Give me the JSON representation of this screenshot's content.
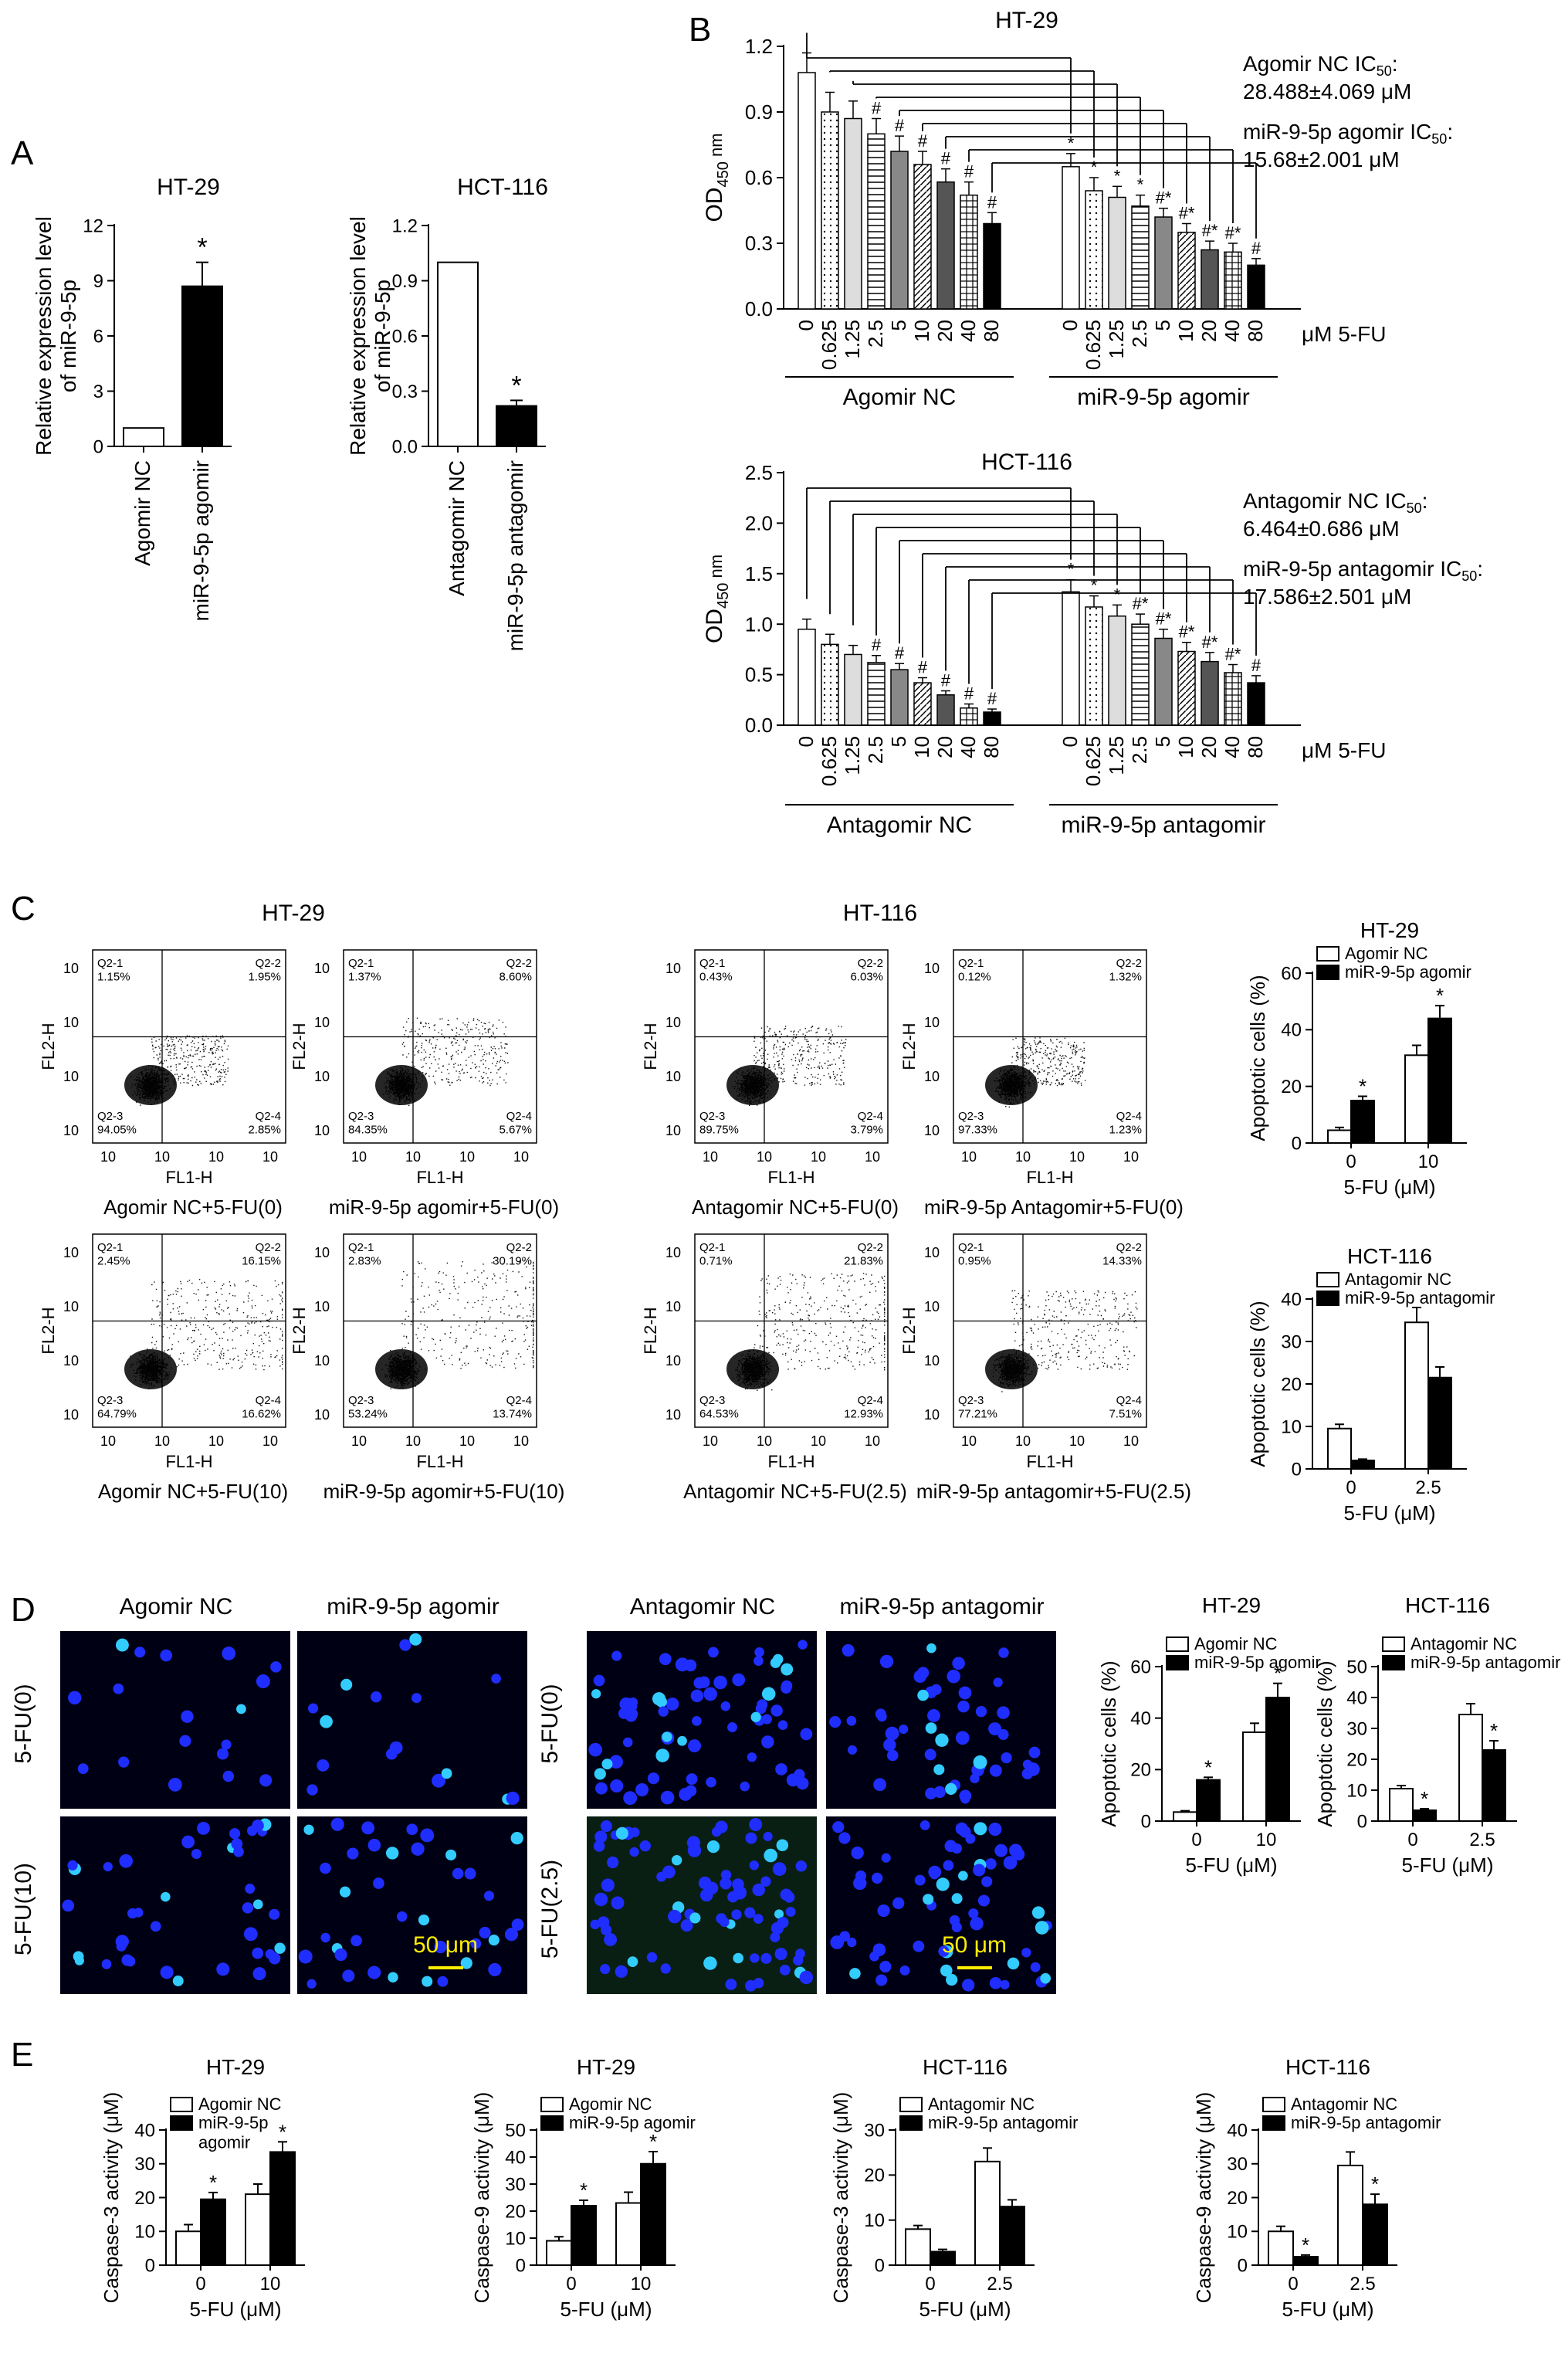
{
  "panel_labels": [
    "A",
    "B",
    "C",
    "D",
    "E"
  ],
  "chart_data": [
    {
      "id": "A_ht29",
      "type": "bar",
      "title": "HT-29",
      "ylabel": "Relative expression level of miR-9-5p",
      "categories": [
        "Agomir NC",
        "miR-9-5p agomir"
      ],
      "values": [
        1.0,
        8.7
      ],
      "errors": [
        0,
        1.3
      ],
      "sig": [
        "",
        "*"
      ],
      "ylim": [
        0,
        12
      ],
      "yticks": [
        0,
        3,
        6,
        9,
        12
      ],
      "colors": [
        "#ffffff",
        "#000000"
      ]
    },
    {
      "id": "A_hct116",
      "type": "bar",
      "title": "HCT-116",
      "ylabel": "Relative expression level of miR-9-5p",
      "categories": [
        "Antagomir NC",
        "miR-9-5p antagomir"
      ],
      "values": [
        1.0,
        0.22
      ],
      "errors": [
        0,
        0.03
      ],
      "sig": [
        "",
        "*"
      ],
      "ylim": [
        0,
        1.2
      ],
      "yticks": [
        "0.0",
        "0.3",
        "0.6",
        "0.9",
        "1.2"
      ],
      "colors": [
        "#ffffff",
        "#000000"
      ]
    },
    {
      "id": "B_ht29",
      "type": "bar",
      "title": "HT-29",
      "ylabel": "OD450 nm",
      "xunit": "μM 5-FU",
      "ylim": [
        0,
        1.2
      ],
      "yticks": [
        "0.0",
        "0.3",
        "0.6",
        "0.9",
        "1.2"
      ],
      "categories": [
        "0",
        "0.625",
        "1.25",
        "2.5",
        "5",
        "10",
        "20",
        "40",
        "80"
      ],
      "groups": [
        "Agomir  NC",
        "miR-9-5p agomir"
      ],
      "series": [
        {
          "name": "Agomir  NC",
          "values": [
            1.08,
            0.9,
            0.87,
            0.8,
            0.72,
            0.66,
            0.58,
            0.52,
            0.39
          ],
          "errors": [
            0.09,
            0.09,
            0.08,
            0.07,
            0.07,
            0.06,
            0.06,
            0.06,
            0.05
          ],
          "sig": [
            "",
            "",
            "",
            "#",
            "#",
            "#",
            "#",
            "#",
            "#"
          ]
        },
        {
          "name": "miR-9-5p agomir",
          "values": [
            0.65,
            0.54,
            0.51,
            0.47,
            0.42,
            0.35,
            0.27,
            0.26,
            0.2
          ],
          "errors": [
            0.06,
            0.06,
            0.05,
            0.05,
            0.04,
            0.04,
            0.04,
            0.04,
            0.03
          ],
          "sig": [
            "*",
            "*",
            "*",
            "*",
            "#*",
            "#*",
            "#*",
            "#*",
            "#"
          ]
        }
      ],
      "ic50": [
        "Agomir NC IC50:",
        "28.488±4.069 μM",
        "miR-9-5p agomir IC50:",
        "15.68±2.001 μM"
      ]
    },
    {
      "id": "B_hct116",
      "type": "bar",
      "title": "HCT-116",
      "ylabel": "OD450 nm",
      "xunit": "μM 5-FU",
      "ylim": [
        0,
        2.5
      ],
      "yticks": [
        "0.0",
        "0.5",
        "1.0",
        "1.5",
        "2.0",
        "2.5"
      ],
      "categories": [
        "0",
        "0.625",
        "1.25",
        "2.5",
        "5",
        "10",
        "20",
        "40",
        "80"
      ],
      "groups": [
        "Antagomir NC",
        "miR-9-5p antagomir"
      ],
      "series": [
        {
          "name": "Antagomir NC",
          "values": [
            0.95,
            0.8,
            0.7,
            0.62,
            0.55,
            0.42,
            0.3,
            0.17,
            0.13
          ],
          "errors": [
            0.1,
            0.1,
            0.09,
            0.07,
            0.06,
            0.05,
            0.04,
            0.04,
            0.03
          ],
          "sig": [
            "",
            "",
            "",
            "#",
            "#",
            "#",
            "#",
            "#",
            "#"
          ]
        },
        {
          "name": "miR-9-5p antagomir",
          "values": [
            1.32,
            1.17,
            1.08,
            1.0,
            0.86,
            0.73,
            0.63,
            0.52,
            0.42
          ],
          "errors": [
            0.12,
            0.11,
            0.11,
            0.1,
            0.09,
            0.09,
            0.09,
            0.08,
            0.07
          ],
          "sig": [
            "*",
            "*",
            "*",
            "#*",
            "#*",
            "#*",
            "#*",
            "#*",
            "#"
          ]
        }
      ],
      "ic50": [
        "Antagomir NC IC50:",
        "6.464±0.686 μM",
        "miR-9-5p antagomir IC50:",
        "17.586±2.501 μM"
      ]
    },
    {
      "id": "C_ht29_bar",
      "type": "bar",
      "title": "HT-29",
      "ylabel": "Apoptotic cells (%)",
      "xlabel": "5-FU (μM)",
      "ylim": [
        0,
        60
      ],
      "yticks": [
        "0",
        "20",
        "40",
        "60"
      ],
      "categories": [
        "0",
        "10"
      ],
      "series": [
        {
          "name": "Agomir NC",
          "values": [
            4.5,
            31
          ],
          "errors": [
            1,
            3.5
          ],
          "sig": [
            "",
            ""
          ]
        },
        {
          "name": "miR-9-5p agomir",
          "values": [
            15,
            44
          ],
          "errors": [
            1.5,
            4.5
          ],
          "sig": [
            "*",
            "*"
          ]
        }
      ]
    },
    {
      "id": "C_hct116_bar",
      "type": "bar",
      "title": "HCT-116",
      "ylabel": "Apoptotic cells (%)",
      "xlabel": "5-FU (μM)",
      "ylim": [
        0,
        40
      ],
      "yticks": [
        "0",
        "10",
        "20",
        "30",
        "40"
      ],
      "categories": [
        "0",
        "2.5"
      ],
      "series": [
        {
          "name": "Antagomir NC",
          "values": [
            9.5,
            34.5
          ],
          "errors": [
            1.0,
            3.5
          ],
          "sig": [
            "",
            ""
          ]
        },
        {
          "name": "miR-9-5p antagomir",
          "values": [
            2,
            21.5
          ],
          "errors": [
            0.3,
            2.5
          ],
          "sig": [
            "",
            ""
          ]
        }
      ]
    },
    {
      "id": "D_ht29_bar",
      "type": "bar",
      "title": "HT-29",
      "ylabel": "Apoptotic cells (%)",
      "xlabel": "5-FU (μM)",
      "ylim": [
        0,
        60
      ],
      "yticks": [
        "0",
        "20",
        "40",
        "60"
      ],
      "categories": [
        "0",
        "10"
      ],
      "series": [
        {
          "name": "Agomir NC",
          "values": [
            3.5,
            34.5
          ],
          "errors": [
            0.5,
            3.5
          ],
          "sig": [
            "",
            ""
          ]
        },
        {
          "name": "miR-9-5p agomir",
          "values": [
            16,
            48
          ],
          "errors": [
            1.0,
            5.5
          ],
          "sig": [
            "*",
            "*"
          ]
        }
      ]
    },
    {
      "id": "D_hct116_bar",
      "type": "bar",
      "title": "HCT-116",
      "ylabel": "Apoptotic cells (%)",
      "xlabel": "5-FU (μM)",
      "ylim": [
        0,
        50
      ],
      "yticks": [
        "0",
        "10",
        "20",
        "30",
        "40",
        "50"
      ],
      "categories": [
        "0",
        "2.5"
      ],
      "series": [
        {
          "name": "Antagomir NC",
          "values": [
            10.5,
            34.5
          ],
          "errors": [
            1.0,
            3.5
          ],
          "sig": [
            "",
            ""
          ]
        },
        {
          "name": "miR-9-5p antagomir",
          "values": [
            3.5,
            23
          ],
          "errors": [
            0.5,
            3.0
          ],
          "sig": [
            "*",
            "*"
          ]
        }
      ]
    },
    {
      "id": "E_ht29_c3",
      "type": "bar",
      "title": "HT-29",
      "ylabel": "Caspase-3 activity (μM)",
      "xlabel": "5-FU (μM)",
      "ylim": [
        0,
        40
      ],
      "yticks": [
        "0",
        "10",
        "20",
        "30",
        "40"
      ],
      "categories": [
        "0",
        "10"
      ],
      "series": [
        {
          "name": "Agomir NC",
          "values": [
            10,
            21
          ],
          "errors": [
            2,
            3
          ],
          "sig": [
            "",
            ""
          ]
        },
        {
          "name": "miR-9-5p\nagomir",
          "values": [
            19.5,
            33.5
          ],
          "errors": [
            2,
            3
          ],
          "sig": [
            "*",
            "*"
          ]
        }
      ]
    },
    {
      "id": "E_ht29_c9",
      "type": "bar",
      "title": "HT-29",
      "ylabel": "Caspase-9 activity (μM)",
      "xlabel": "5-FU (μM)",
      "ylim": [
        0,
        50
      ],
      "yticks": [
        "0",
        "10",
        "20",
        "30",
        "40",
        "50"
      ],
      "categories": [
        "0",
        "10"
      ],
      "series": [
        {
          "name": "Agomir NC",
          "values": [
            9,
            23
          ],
          "errors": [
            1.5,
            4
          ],
          "sig": [
            "",
            ""
          ]
        },
        {
          "name": "miR-9-5p agomir",
          "values": [
            22,
            37.5
          ],
          "errors": [
            2,
            4.5
          ],
          "sig": [
            "*",
            "*"
          ]
        }
      ]
    },
    {
      "id": "E_hct116_c3",
      "type": "bar",
      "title": "HCT-116",
      "ylabel": "Caspase-3 activity (μM)",
      "xlabel": "5-FU (μM)",
      "ylim": [
        0,
        30
      ],
      "yticks": [
        "0",
        "10",
        "20",
        "30"
      ],
      "categories": [
        "0",
        "2.5"
      ],
      "series": [
        {
          "name": "Antagomir NC",
          "values": [
            8,
            23
          ],
          "errors": [
            0.8,
            3
          ],
          "sig": [
            "",
            ""
          ]
        },
        {
          "name": "miR-9-5p antagomir",
          "values": [
            3,
            13
          ],
          "errors": [
            0.5,
            1.5
          ],
          "sig": [
            "",
            ""
          ]
        }
      ]
    },
    {
      "id": "E_hct116_c9",
      "type": "bar",
      "title": "HCT-116",
      "ylabel": "Caspase-9 activity (μM)",
      "xlabel": "5-FU (μM)",
      "ylim": [
        0,
        40
      ],
      "yticks": [
        "0",
        "10",
        "20",
        "30",
        "40"
      ],
      "categories": [
        "0",
        "2.5"
      ],
      "series": [
        {
          "name": "Antagomir NC",
          "values": [
            10,
            29.5
          ],
          "errors": [
            1.5,
            4
          ],
          "sig": [
            "",
            ""
          ]
        },
        {
          "name": "miR-9-5p antagomir",
          "values": [
            2.5,
            18
          ],
          "errors": [
            0.5,
            3
          ],
          "sig": [
            "*",
            "*"
          ]
        }
      ]
    }
  ],
  "flow": {
    "headers": [
      "HT-29",
      "HT-116"
    ],
    "plots": [
      {
        "label": "Agomir NC+5-FU(0)",
        "q": [
          "Q2-1\n1.15%",
          "Q2-2\n1.95%",
          "Q2-3\n94.05%",
          "Q2-4\n2.85%"
        ],
        "ylab": "FL2-H",
        "xlab": "FL1-H"
      },
      {
        "label": "miR-9-5p agomir+5-FU(0)",
        "q": [
          "Q2-1\n1.37%",
          "Q2-2\n8.60%",
          "Q2-3\n84.35%",
          "Q2-4\n5.67%"
        ],
        "ylab": "FL2-H",
        "xlab": "FL1-H"
      },
      {
        "label": "Antagomir NC+5-FU(0)",
        "q": [
          "Q2-1\n0.43%",
          "Q2-2\n6.03%",
          "Q2-3\n89.75%",
          "Q2-4\n3.79%"
        ],
        "ylab": "FL2-H",
        "xlab": "FL1-H"
      },
      {
        "label": "miR-9-5p Antagomir+5-FU(0)",
        "q": [
          "Q2-1\n0.12%",
          "Q2-2\n1.32%",
          "Q2-3\n97.33%",
          "Q2-4\n1.23%"
        ],
        "ylab": "FL2-H",
        "xlab": "FL1-H"
      },
      {
        "label": "Agomir NC+5-FU(10)",
        "q": [
          "Q2-1\n2.45%",
          "Q2-2\n16.15%",
          "Q2-3\n64.79%",
          "Q2-4\n16.62%"
        ],
        "ylab": "FL2-H",
        "xlab": "FL1-H"
      },
      {
        "label": "miR-9-5p agomir+5-FU(10)",
        "q": [
          "Q2-1\n2.83%",
          "Q2-2\n30.19%",
          "Q2-3\n53.24%",
          "Q2-4\n13.74%"
        ],
        "ylab": "FL2-H",
        "xlab": "FL1-H"
      },
      {
        "label": "Antagomir NC+5-FU(2.5)",
        "q": [
          "Q2-1\n0.71%",
          "Q2-2\n21.83%",
          "Q2-3\n64.53%",
          "Q2-4\n12.93%"
        ],
        "ylab": "FL2-H",
        "xlab": "FL1-H"
      },
      {
        "label": "miR-9-5p antagomir+5-FU(2.5)",
        "q": [
          "Q2-1\n0.95%",
          "Q2-2\n14.33%",
          "Q2-3\n77.21%",
          "Q2-4\n7.51%"
        ],
        "ylab": "FL2-H",
        "xlab": "FL1-H"
      }
    ]
  },
  "micro": {
    "col_labels": [
      "Agomir NC",
      "miR-9-5p agomir",
      "Antagomir NC",
      "miR-9-5p antagomir"
    ],
    "row_labels_left": [
      "5-FU(0)",
      "5-FU(10)"
    ],
    "row_labels_right": [
      "5-FU(0)",
      "5-FU(2.5)"
    ],
    "scale": "50 μm"
  },
  "colors": {
    "nc_fill": "#ffffff",
    "treat_fill": "#000000",
    "nuclei": "#2233ff",
    "micro_bg": "#000010",
    "scale": "#ffee00"
  }
}
